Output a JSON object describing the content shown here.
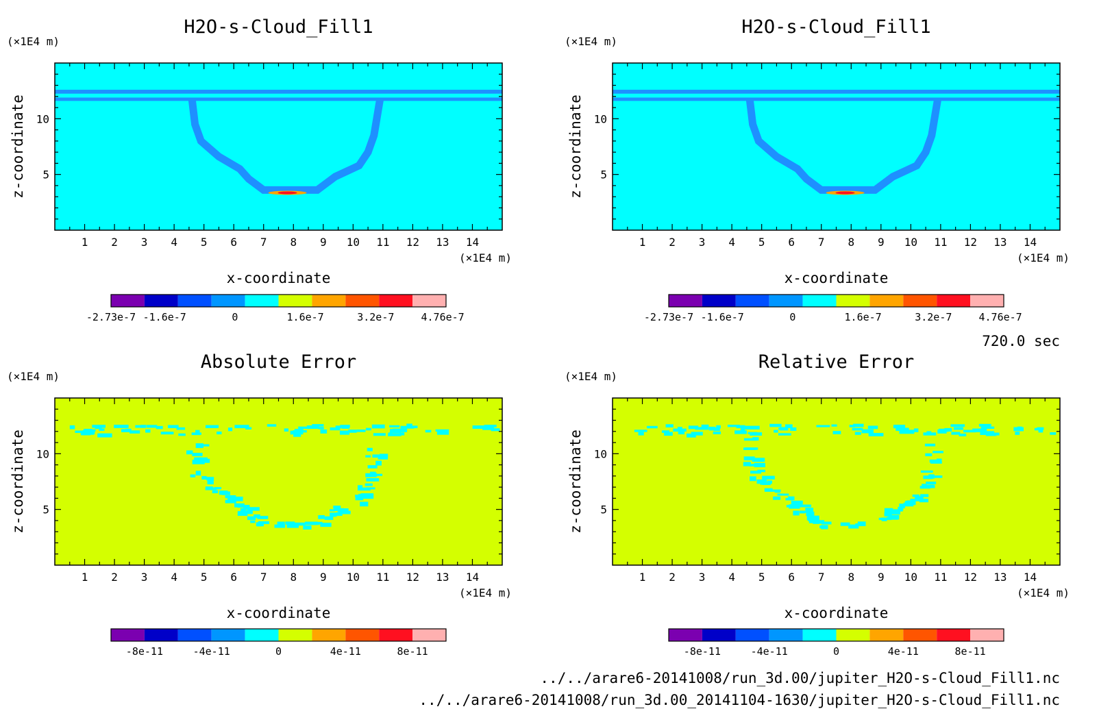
{
  "time_label": "720.0 sec",
  "files": [
    "../../arare6-20141008/run_3d.00/jupiter_H2O-s-Cloud_Fill1.nc",
    "../../arare6-20141008/run_3d.00_20141104-1630/jupiter_H2O-s-Cloud_Fill1.nc"
  ],
  "colors": {
    "field_background": "#00ffff",
    "error_background": "#d4ff00",
    "cloud_band": "#1e90ff",
    "error_speckle": "#00ffff"
  },
  "chart_data": [
    {
      "type": "heatmap",
      "title": "H2O-s-Cloud_Fill1",
      "xlabel": "x-coordinate",
      "ylabel": "z-coordinate",
      "x_unit": "(×1E4 m)",
      "y_unit": "(×1E4 m)",
      "xlim": [
        0,
        15
      ],
      "ylim": [
        0,
        15
      ],
      "x_ticks": [
        1,
        2,
        3,
        4,
        5,
        6,
        7,
        8,
        9,
        10,
        11,
        12,
        13,
        14
      ],
      "y_ticks": [
        5,
        10
      ],
      "colorbar": {
        "colors": [
          "#7b00b0",
          "#0000c8",
          "#0050ff",
          "#0096ff",
          "#00ffff",
          "#d4ff00",
          "#ffa500",
          "#ff5500",
          "#ff1020",
          "#ffb0b0"
        ],
        "labels": [
          "-2.73e-7",
          "-1.6e-7",
          "0",
          "1.6e-7",
          "3.2e-7",
          "4.76e-7"
        ]
      }
    },
    {
      "type": "heatmap",
      "title": "H2O-s-Cloud_Fill1",
      "xlabel": "x-coordinate",
      "ylabel": "z-coordinate",
      "x_unit": "(×1E4 m)",
      "y_unit": "(×1E4 m)",
      "xlim": [
        0,
        15
      ],
      "ylim": [
        0,
        15
      ],
      "x_ticks": [
        1,
        2,
        3,
        4,
        5,
        6,
        7,
        8,
        9,
        10,
        11,
        12,
        13,
        14
      ],
      "y_ticks": [
        5,
        10
      ],
      "colorbar": {
        "colors": [
          "#7b00b0",
          "#0000c8",
          "#0050ff",
          "#0096ff",
          "#00ffff",
          "#d4ff00",
          "#ffa500",
          "#ff5500",
          "#ff1020",
          "#ffb0b0"
        ],
        "labels": [
          "-2.73e-7",
          "-1.6e-7",
          "0",
          "1.6e-7",
          "3.2e-7",
          "4.76e-7"
        ]
      }
    },
    {
      "type": "heatmap",
      "title": "Absolute Error",
      "xlabel": "x-coordinate",
      "ylabel": "z-coordinate",
      "x_unit": "(×1E4 m)",
      "y_unit": "(×1E4 m)",
      "xlim": [
        0,
        15
      ],
      "ylim": [
        0,
        15
      ],
      "x_ticks": [
        1,
        2,
        3,
        4,
        5,
        6,
        7,
        8,
        9,
        10,
        11,
        12,
        13,
        14
      ],
      "y_ticks": [
        5,
        10
      ],
      "colorbar": {
        "colors": [
          "#7b00b0",
          "#0000c8",
          "#0050ff",
          "#0096ff",
          "#00ffff",
          "#d4ff00",
          "#ffa500",
          "#ff5500",
          "#ff1020",
          "#ffb0b0"
        ],
        "labels": [
          "-8e-11",
          "-4e-11",
          "0",
          "4e-11",
          "8e-11"
        ]
      }
    },
    {
      "type": "heatmap",
      "title": "Relative Error",
      "xlabel": "x-coordinate",
      "ylabel": "z-coordinate",
      "x_unit": "(×1E4 m)",
      "y_unit": "(×1E4 m)",
      "xlim": [
        0,
        15
      ],
      "ylim": [
        0,
        15
      ],
      "x_ticks": [
        1,
        2,
        3,
        4,
        5,
        6,
        7,
        8,
        9,
        10,
        11,
        12,
        13,
        14
      ],
      "y_ticks": [
        5,
        10
      ],
      "colorbar": {
        "colors": [
          "#7b00b0",
          "#0000c8",
          "#0050ff",
          "#0096ff",
          "#00ffff",
          "#d4ff00",
          "#ffa500",
          "#ff5500",
          "#ff1020",
          "#ffb0b0"
        ],
        "labels": [
          "-8e-11",
          "-4e-11",
          "0",
          "4e-11",
          "8e-11"
        ]
      }
    }
  ]
}
